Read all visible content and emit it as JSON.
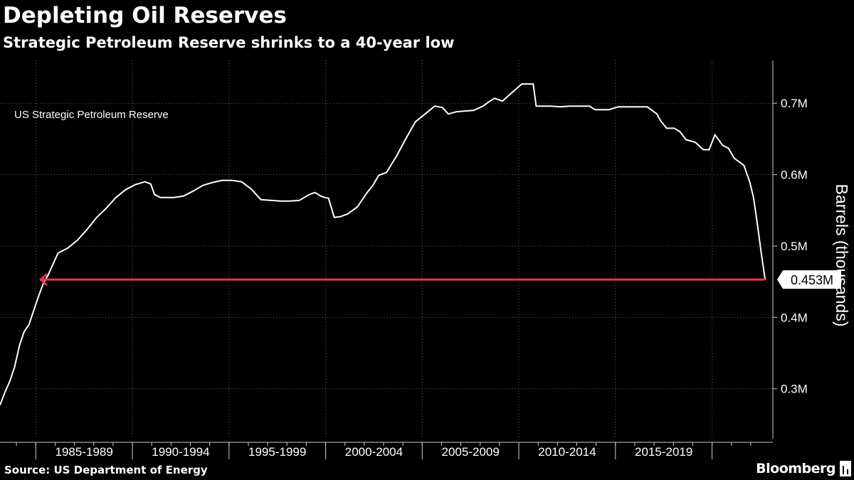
{
  "header": {
    "title": "Depleting Oil Reserves",
    "subtitle": "Strategic Petroleum Reserve shrinks to a 40-year low"
  },
  "footer": {
    "source": "Source: US Department of Energy",
    "brand": "Bloomberg",
    "brand_icon": "bloomberg-terminal-icon"
  },
  "colors": {
    "background": "#000000",
    "line": "#ffffff",
    "grid": "#666666",
    "reference_line": "#e8334a",
    "text": "#ffffff"
  },
  "chart_data": {
    "type": "line",
    "title": "Depleting Oil Reserves",
    "subtitle": "Strategic Petroleum Reserve shrinks to a 40-year low",
    "series": [
      {
        "name": "US Strategic Petroleum Reserve",
        "x": [
          1983.0,
          1983.25,
          1983.5,
          1983.75,
          1984.0,
          1984.25,
          1984.5,
          1984.75,
          1985.0,
          1985.25,
          1985.5,
          1985.75,
          1986.0,
          1986.5,
          1987.0,
          1987.5,
          1988.0,
          1988.5,
          1989.0,
          1989.5,
          1990.0,
          1990.5,
          1990.8,
          1991.0,
          1991.3,
          1992.0,
          1992.5,
          1993.0,
          1993.5,
          1994.0,
          1994.5,
          1995.0,
          1995.5,
          1996.0,
          1996.5,
          1997.0,
          1997.5,
          1998.0,
          1998.5,
          1999.0,
          1999.3,
          1999.6,
          1999.8,
          2000.0,
          2000.3,
          2000.6,
          2001.0,
          2001.5,
          2002.0,
          2002.3,
          2002.6,
          2003.0,
          2003.5,
          2004.0,
          2004.5,
          2005.0,
          2005.5,
          2005.9,
          2006.2,
          2006.6,
          2007.0,
          2007.5,
          2008.0,
          2008.3,
          2008.6,
          2009.0,
          2010.0,
          2010.6,
          2010.75,
          2011.5,
          2012.0,
          2012.5,
          2013.0,
          2013.5,
          2013.8,
          2014.5,
          2015.0,
          2015.5,
          2016.0,
          2016.5,
          2017.0,
          2017.2,
          2017.5,
          2017.9,
          2018.2,
          2018.5,
          2018.9,
          2019.0,
          2019.4,
          2019.7,
          2020.0,
          2020.4,
          2020.7,
          2021.0,
          2021.5,
          2021.8,
          2022.0,
          2022.2,
          2022.4,
          2022.6
        ],
        "values": [
          0.277,
          0.295,
          0.31,
          0.33,
          0.36,
          0.38,
          0.39,
          0.41,
          0.43,
          0.448,
          0.46,
          0.475,
          0.49,
          0.497,
          0.508,
          0.523,
          0.54,
          0.553,
          0.568,
          0.579,
          0.586,
          0.59,
          0.587,
          0.572,
          0.568,
          0.568,
          0.57,
          0.577,
          0.585,
          0.589,
          0.592,
          0.592,
          0.59,
          0.58,
          0.565,
          0.564,
          0.563,
          0.563,
          0.564,
          0.572,
          0.575,
          0.57,
          0.568,
          0.567,
          0.54,
          0.541,
          0.545,
          0.555,
          0.575,
          0.585,
          0.599,
          0.603,
          0.625,
          0.65,
          0.674,
          0.685,
          0.696,
          0.694,
          0.685,
          0.688,
          0.689,
          0.69,
          0.696,
          0.702,
          0.707,
          0.703,
          0.727,
          0.727,
          0.696,
          0.696,
          0.695,
          0.696,
          0.696,
          0.696,
          0.691,
          0.691,
          0.695,
          0.695,
          0.695,
          0.695,
          0.685,
          0.675,
          0.665,
          0.665,
          0.66,
          0.649,
          0.646,
          0.645,
          0.635,
          0.635,
          0.656,
          0.641,
          0.637,
          0.623,
          0.613,
          0.59,
          0.568,
          0.53,
          0.49,
          0.453
        ]
      }
    ],
    "categories": [
      "1985-1989",
      "1990-1994",
      "1995-1999",
      "2000-2004",
      "2005-2009",
      "2010-2014",
      "2015-2019"
    ],
    "category_ranges": [
      [
        1985,
        1990
      ],
      [
        1990,
        1995
      ],
      [
        1995,
        2000
      ],
      [
        2000,
        2005
      ],
      [
        2005,
        2010
      ],
      [
        2010,
        2015
      ],
      [
        2015,
        2020
      ]
    ],
    "xlim": [
      1983.0,
      2023.0
    ],
    "ylim": [
      0.23,
      0.76
    ],
    "yticks": [
      0.3,
      0.4,
      0.5,
      0.6,
      0.7
    ],
    "ytick_labels": [
      "0.3M",
      "0.4M",
      "0.5M",
      "0.6M",
      "0.7M"
    ],
    "ylabel": "Barrels (thousands)",
    "xlabel": "",
    "y_axis_side": "right",
    "legend_text": "US Strategic Petroleum Reserve",
    "legend_placement": "top-left",
    "grid": true,
    "grid_style": "dotted",
    "reference_line": {
      "value": 0.453,
      "from_x": 1985.1,
      "to_x": 2022.6,
      "color": "#e8334a",
      "arrow": "left"
    },
    "last_value_label": "0.453M"
  }
}
